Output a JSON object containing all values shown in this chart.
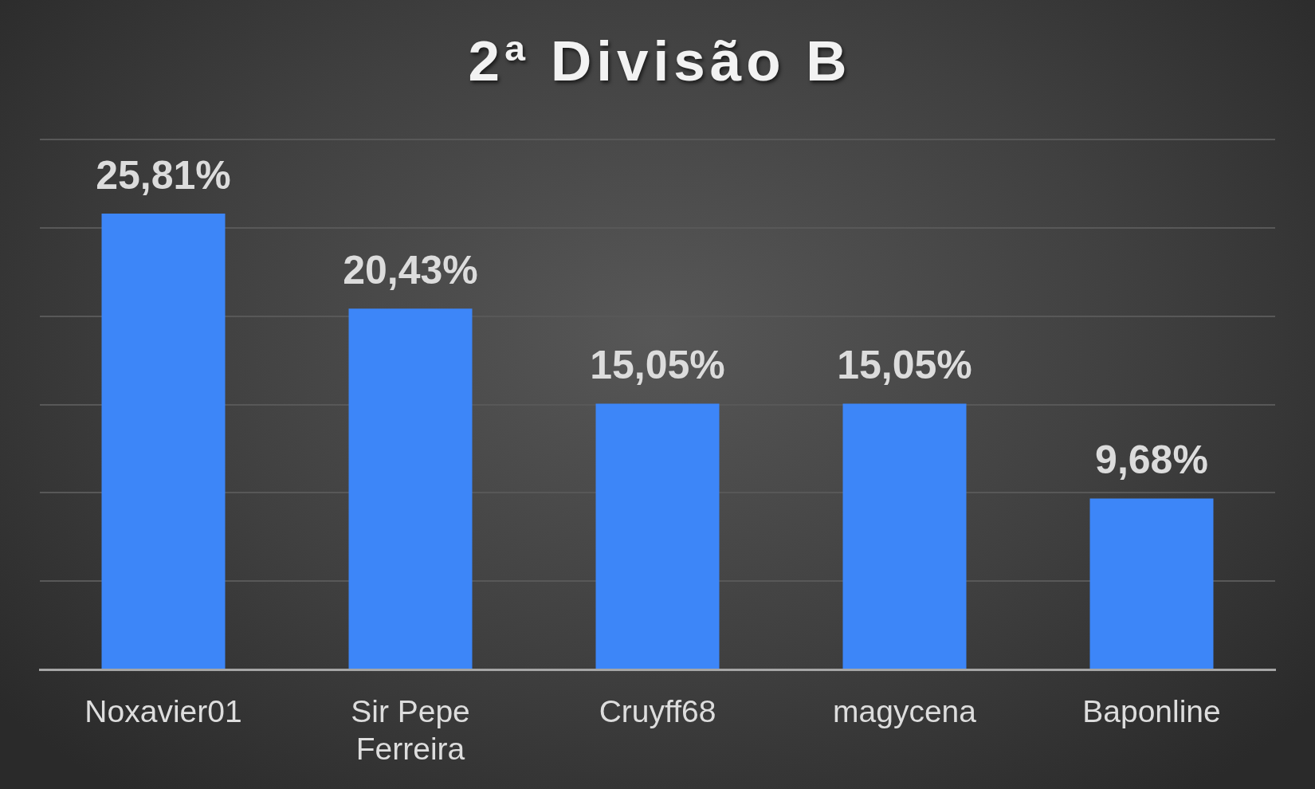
{
  "chart_data": {
    "type": "bar",
    "title": "2ª Divisão B",
    "categories": [
      "Noxavier01",
      "Sir Pepe Ferreira",
      "Cruyff68",
      "magycena",
      "Baponline"
    ],
    "values": [
      25.81,
      20.43,
      15.05,
      15.05,
      9.68
    ],
    "value_labels": [
      "25,81%",
      "20,43%",
      "15,05%",
      "15,05%",
      "9,68%"
    ],
    "color": "#3d86f8",
    "ylim": [
      0,
      30
    ],
    "yticks": [
      {
        "value": 0,
        "label": null
      },
      {
        "value": 5,
        "label": null
      },
      {
        "value": 10,
        "label": null
      },
      {
        "value": 15,
        "label": null
      },
      {
        "value": 20,
        "label": null
      },
      {
        "value": 25,
        "label": null
      },
      {
        "value": 30,
        "label": null
      }
    ],
    "grid": "y",
    "tick_labels": "x"
  }
}
